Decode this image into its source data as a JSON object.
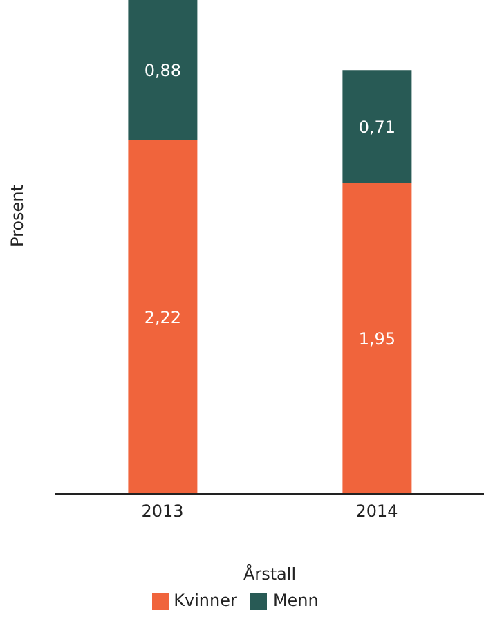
{
  "chart_data": {
    "type": "bar",
    "xlabel": "Årstall",
    "ylabel": "Prosent",
    "categories": [
      "2013",
      "2014"
    ],
    "stacked": true,
    "legend": "bottom",
    "tick_labels": "x",
    "grid": false,
    "series": [
      {
        "name": "Kvinner",
        "color": "#f0643c",
        "values": [
          2.22,
          1.95
        ],
        "value_labels": [
          "2,22",
          "1,95"
        ]
      },
      {
        "name": "Menn",
        "color": "#285a55",
        "values": [
          0.88,
          0.71
        ],
        "value_labels": [
          "0,88",
          "0,71"
        ]
      }
    ]
  }
}
